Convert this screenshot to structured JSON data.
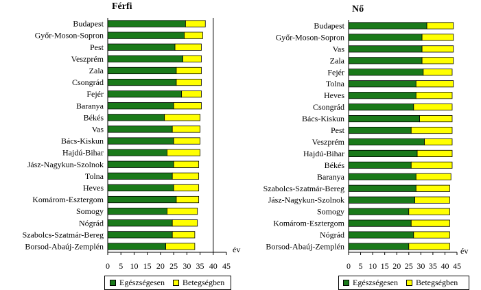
{
  "colors": {
    "healthy": "#1a7a1a",
    "ill": "#ffff00"
  },
  "legend": {
    "healthy": "Egészségesen",
    "ill": "Betegségben"
  },
  "chart_data": [
    {
      "type": "bar",
      "orientation": "horizontal",
      "stacked": true,
      "title": "Férfi",
      "axis_unit": "év",
      "xlim": [
        0,
        45
      ],
      "x_ticks": [
        "0",
        "5",
        "10",
        "15",
        "20",
        "25",
        "30",
        "35",
        "40",
        "45"
      ],
      "grid": false,
      "reference_line": 40,
      "categories": [
        "Budapest",
        "Győr-Moson-Sopron",
        "Pest",
        "Veszprém",
        "Zala",
        "Csongrád",
        "Fejér",
        "Baranya",
        "Békés",
        "Vas",
        "Bács-Kiskun",
        "Hajdú-Bihar",
        "Jász-Nagykun-Szolnok",
        "Tolna",
        "Heves",
        "Komárom-Esztergom",
        "Somogy",
        "Nógrád",
        "Szabolcs-Szatmár-Bereg",
        "Borsod-Abaúj-Zemplén"
      ],
      "series": [
        {
          "name": "Egészségesen",
          "values": [
            29.5,
            29.0,
            25.5,
            28.5,
            26.0,
            26.0,
            28.0,
            25.0,
            21.5,
            24.5,
            25.0,
            22.5,
            25.0,
            24.5,
            25.0,
            26.0,
            22.5,
            24.5,
            24.5,
            22.0
          ]
        },
        {
          "name": "Betegségben",
          "values": [
            7.5,
            7.0,
            10.0,
            7.0,
            9.5,
            9.5,
            7.5,
            10.5,
            13.5,
            10.5,
            10.0,
            12.5,
            9.5,
            10.0,
            9.5,
            8.5,
            11.5,
            9.5,
            8.5,
            11.0
          ]
        }
      ]
    },
    {
      "type": "bar",
      "orientation": "horizontal",
      "stacked": true,
      "title": "Nő",
      "axis_unit": "év",
      "xlim": [
        0,
        45
      ],
      "x_ticks": [
        "0",
        "5",
        "10",
        "15",
        "20",
        "25",
        "30",
        "35",
        "40",
        "45"
      ],
      "grid": false,
      "categories": [
        "Budapest",
        "Győr-Moson-Sopron",
        "Vas",
        "Zala",
        "Fejér",
        "Tolna",
        "Heves",
        "Csongrád",
        "Bács-Kiskun",
        "Pest",
        "Veszprém",
        "Hajdú-Bihar",
        "Békés",
        "Baranya",
        "Szabolcs-Szatmár-Bereg",
        "Jász-Nagykun-Szolnok",
        "Somogy",
        "Komárom-Esztergom",
        "Nógrád",
        "Borsod-Abaúj-Zemplén"
      ],
      "series": [
        {
          "name": "Egészségesen",
          "values": [
            32.5,
            30.5,
            30.5,
            30.5,
            31.0,
            28.0,
            28.0,
            27.0,
            29.5,
            26.0,
            31.5,
            28.5,
            26.0,
            28.0,
            28.0,
            27.5,
            25.0,
            26.0,
            27.0,
            25.0
          ]
        },
        {
          "name": "Betegségben",
          "values": [
            11.0,
            13.0,
            13.0,
            13.0,
            12.0,
            15.5,
            15.0,
            16.0,
            13.5,
            17.0,
            11.5,
            14.5,
            17.0,
            14.5,
            14.0,
            14.5,
            17.0,
            16.0,
            15.0,
            17.0
          ]
        }
      ]
    }
  ]
}
